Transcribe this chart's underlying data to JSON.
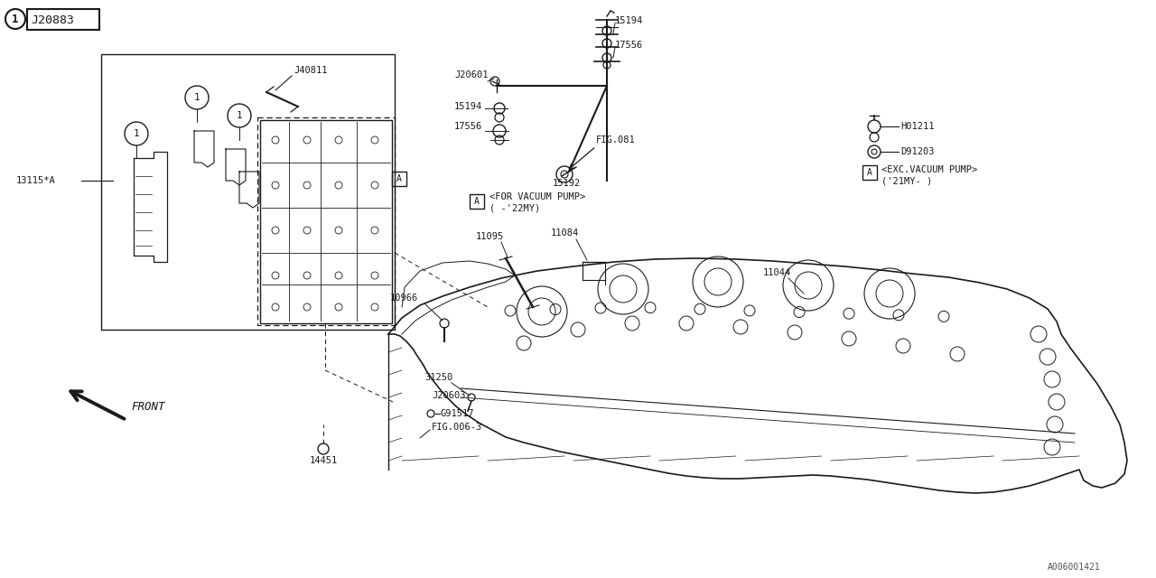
{
  "bg_color": "#ffffff",
  "line_color": "#1a1a1a",
  "parts": {
    "top_box_label": "J20883",
    "label_13115A": "13115*A",
    "label_J40811": "J40811",
    "label_J20601": "J20601",
    "label_15194_top": "15194",
    "label_17556_top": "17556",
    "label_15194_mid": "15194",
    "label_17556_mid": "17556",
    "label_FIG081": "FIG.081",
    "label_15192": "15192",
    "label_for_vacuum": "<FOR VACUUM PUMP>",
    "label_22my": "( -'22MY)",
    "label_H01211": "H01211",
    "label_D91203": "D91203",
    "label_exc_vacuum": "<EXC.VACUUM PUMP>",
    "label_21my": "('21MY- )",
    "label_11095": "11095",
    "label_11084": "11084",
    "label_10966": "10966",
    "label_11044": "11044",
    "label_31250": "31250",
    "label_J20603": "J20603",
    "label_G91517": "G91517",
    "label_FIG006_3": "FIG.006-3",
    "label_14451": "14451",
    "label_FRONT": "FRONT",
    "label_bottom_right": "A006001421"
  }
}
